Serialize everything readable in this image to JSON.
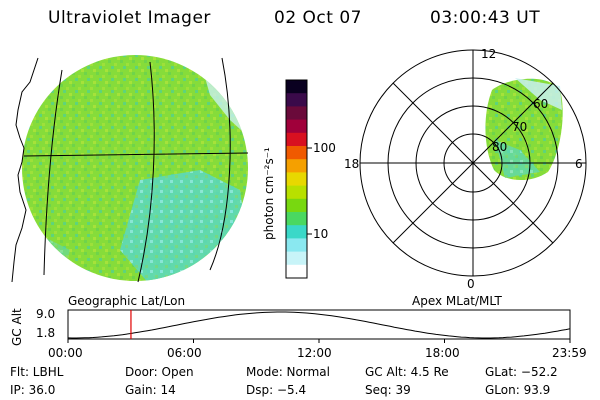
{
  "header": {
    "title": "Ultraviolet Imager",
    "date": "02 Oct 07",
    "time": "03:00:43 UT"
  },
  "left_panel": {
    "caption": "Geographic Lat/Lon"
  },
  "colorbar": {
    "label": "photon cm⁻²s⁻¹",
    "ticks": [
      "100",
      "10"
    ],
    "colors": [
      "#0a0020",
      "#3a0a4a",
      "#6a0a3a",
      "#a0003a",
      "#d81020",
      "#f05a00",
      "#f5a000",
      "#e8d800",
      "#b8e000",
      "#78d810",
      "#4ad860",
      "#3ad8c8",
      "#8ae8f0",
      "#c8f4f8",
      "#ffffff"
    ]
  },
  "right_panel": {
    "caption": "Apex MLat/MLT",
    "mlt_labels": [
      "12",
      "18",
      "6",
      "0"
    ],
    "lat_labels": [
      "60",
      "70",
      "80"
    ]
  },
  "altitude_plot": {
    "axis_label": "GC Alt",
    "y_ticks": [
      "9.0",
      "1.8"
    ],
    "x_ticks": [
      "00:00",
      "06:00",
      "12:00",
      "18:00",
      "23:59"
    ],
    "marker_time_h": 3.01,
    "marker_color": "#e00000"
  },
  "info": {
    "flt": "Flt: LBHL",
    "door": "Door: Open",
    "mode": "Mode: Normal",
    "gc_alt": "GC Alt: 4.5 Re",
    "glat": "GLat: −52.2",
    "ip": "IP: 36.0",
    "gain": "Gain: 14",
    "dsp": "Dsp:   −5.4",
    "seq": "Seq: 39",
    "glon": "GLon:  93.9"
  }
}
